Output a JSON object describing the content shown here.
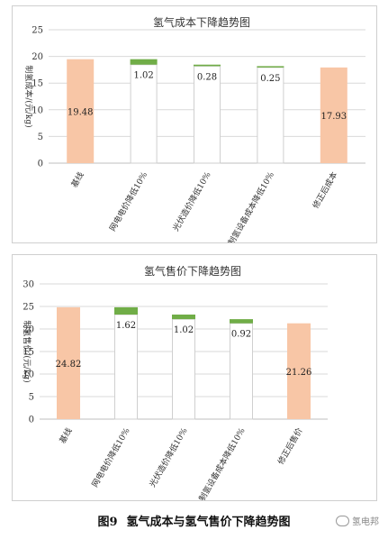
{
  "chart_data": [
    {
      "type": "bar",
      "subtype": "waterfall",
      "title": "氢气成本下降趋势图",
      "ylabel": "制氢成本/(元/kg)",
      "ylim": [
        0,
        25
      ],
      "yticks": [
        0,
        5,
        10,
        15,
        20,
        25
      ],
      "categories": [
        "基线",
        "网电电价降低10%",
        "光伏造价降低10%",
        "制氢设备成本降低10%",
        "修正后成本"
      ],
      "bars": [
        {
          "category": "基线",
          "kind": "total",
          "value": 19.48,
          "label": "19.48"
        },
        {
          "category": "网电电价降低10%",
          "kind": "decrease",
          "value": 1.02,
          "label": "1.02"
        },
        {
          "category": "光伏造价降低10%",
          "kind": "decrease",
          "value": 0.28,
          "label": "0.28"
        },
        {
          "category": "制氢设备成本降低10%",
          "kind": "decrease",
          "value": 0.25,
          "label": "0.25"
        },
        {
          "category": "修正后成本",
          "kind": "total",
          "value": 17.93,
          "label": "17.93"
        }
      ],
      "grid": true
    },
    {
      "type": "bar",
      "subtype": "waterfall",
      "title": "氢气售价下降趋势图",
      "ylabel": "制氢售价/(元/kg)",
      "ylim": [
        0,
        30
      ],
      "yticks": [
        0,
        5,
        10,
        15,
        20,
        25,
        30
      ],
      "categories": [
        "基线",
        "网电电价降低10%",
        "光伏造价降低10%",
        "制氢设备成本降低10%",
        "修正后售价"
      ],
      "bars": [
        {
          "category": "基线",
          "kind": "total",
          "value": 24.82,
          "label": "24.82"
        },
        {
          "category": "网电电价降低10%",
          "kind": "decrease",
          "value": 1.62,
          "label": "1.62"
        },
        {
          "category": "光伏造价降低10%",
          "kind": "decrease",
          "value": 1.02,
          "label": "1.02"
        },
        {
          "category": "制氢设备成本降低10%",
          "kind": "decrease",
          "value": 0.92,
          "label": "0.92"
        },
        {
          "category": "修正后售价",
          "kind": "total",
          "value": 21.26,
          "label": "21.26"
        }
      ],
      "grid": true
    }
  ],
  "colors": {
    "total": "#f8c6a6",
    "decrease": "#70ad47",
    "ghost_border": "#cfcfcf",
    "grid": "#d9d9d9"
  },
  "caption": {
    "figure": "图9",
    "text": "氢气成本与氢气售价下降趋势图"
  },
  "watermark": {
    "text": "氢电邦"
  }
}
